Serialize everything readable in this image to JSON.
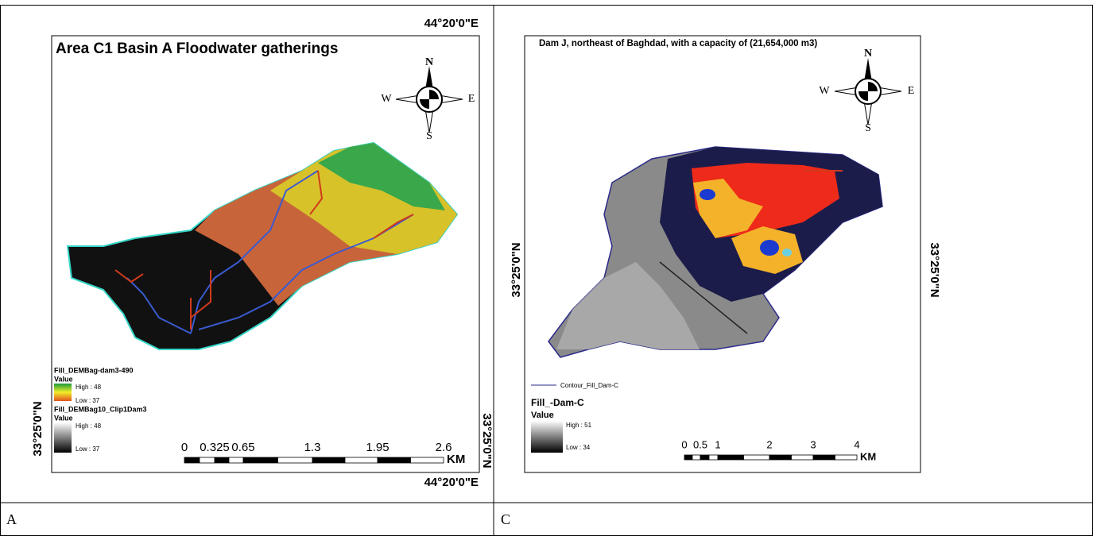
{
  "panels": [
    {
      "title": "Area C1 Basin A Floodwater gatherings",
      "coords": {
        "top": "44°20'0\"E",
        "bottom": "44°20'0\"E",
        "left": "33°25'0\"N",
        "right": "33°25'0\"N"
      },
      "compass": [
        "N",
        "W",
        "E",
        "S"
      ],
      "legend": [
        {
          "layer": "Fill_DEMBag-dam3-490",
          "field": "Value",
          "high": "High : 48",
          "low": "Low : 37"
        },
        {
          "layer": "Fill_DEMBag10_Clip1Dam3",
          "field": "Value",
          "high": "High : 48",
          "low": "Low : 37"
        }
      ],
      "scale": {
        "labels": [
          "0",
          "0.325",
          "0.65",
          "1.3",
          "1.95",
          "2.6"
        ],
        "unit": "KM"
      },
      "caption": "A"
    },
    {
      "title": "Dam J, northeast of Baghdad, with a capacity of (21,654,000 m3)",
      "coords": {
        "left": "33°25'0\"N",
        "right": "33°25'0\"N"
      },
      "compass": [
        "N",
        "W",
        "E",
        "S"
      ],
      "legend": [
        {
          "layer": "Contour_Fill_Dam-C"
        },
        {
          "layer": "Fill_-Dam-C",
          "field": "Value",
          "high": "High : 51",
          "low": "Low : 34"
        }
      ],
      "scale": {
        "labels": [
          "0",
          "0.5",
          "1",
          "2",
          "3",
          "4"
        ],
        "unit": "KM"
      },
      "caption": "C"
    }
  ]
}
